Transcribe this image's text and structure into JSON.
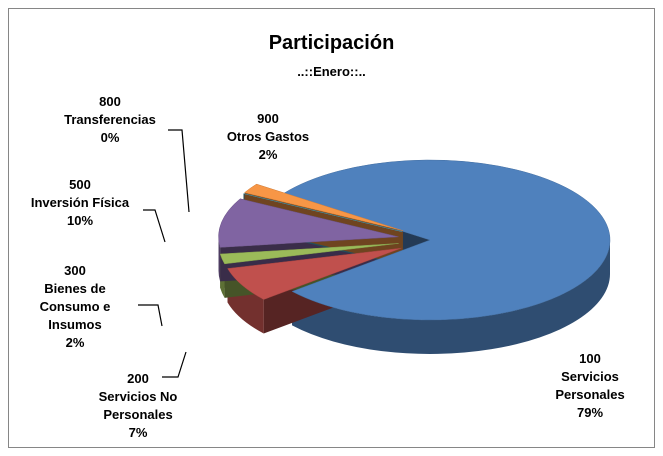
{
  "chart_data": {
    "type": "pie",
    "title": "Participación",
    "subtitle": "..::Enero::..",
    "codes": [
      "100",
      "200",
      "300",
      "500",
      "800",
      "900"
    ],
    "categories": [
      "Servicios Personales",
      "Servicios No Personales",
      "Bienes de Consumo e Insumos",
      "Inversión Física",
      "Transferencias",
      "Otros Gastos"
    ],
    "values": [
      79,
      7,
      2,
      10,
      0,
      2
    ],
    "value_labels": [
      "79%",
      "7%",
      "2%",
      "10%",
      "0%",
      "2%"
    ],
    "colors": [
      "#4f81bd",
      "#c0504d",
      "#9bbb59",
      "#8064a2",
      "#4bacc6",
      "#f79646"
    ]
  }
}
